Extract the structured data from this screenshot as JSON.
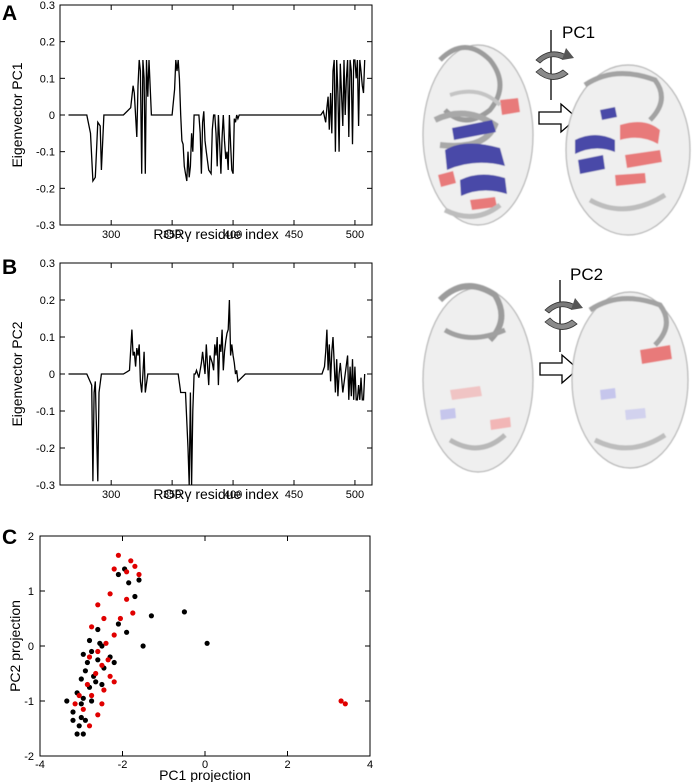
{
  "panels": {
    "a": "A",
    "b": "B",
    "c": "C"
  },
  "structure_labels": {
    "pc1": "PC1",
    "pc2": "PC2"
  },
  "colors": {
    "line": "#000000",
    "black_points": "#000000",
    "red_points": "#e00000",
    "ribbon_base": "#d8d8d8",
    "ribbon_blue": "#4a4aa8",
    "ribbon_red": "#e87a7a"
  },
  "chart_data": [
    {
      "type": "line",
      "panel": "A",
      "xlabel": "RORγ residue index",
      "ylabel": "Eigenvector PC1",
      "xlim": [
        258,
        514
      ],
      "ylim": [
        -0.3,
        0.3
      ],
      "xticks": [
        300,
        350,
        400,
        450,
        500
      ],
      "yticks": [
        -0.3,
        -0.2,
        -0.1,
        0,
        0.1,
        0.2,
        0.3
      ],
      "x": [
        265,
        280,
        283,
        285,
        287,
        289,
        291,
        292,
        294,
        296,
        300,
        310,
        316,
        318,
        319,
        321,
        322,
        323,
        324,
        325,
        326,
        327,
        328,
        329,
        330,
        331,
        333,
        340,
        350,
        352,
        353,
        354,
        355,
        356,
        357,
        358,
        359,
        360,
        361,
        362,
        363,
        364,
        365,
        366,
        367,
        368,
        369,
        370,
        371,
        372,
        373,
        374,
        375,
        376,
        377,
        378,
        380,
        382,
        383,
        384,
        385,
        386,
        387,
        388,
        389,
        390,
        391,
        392,
        393,
        394,
        395,
        396,
        397,
        398,
        399,
        400,
        401,
        402,
        403,
        404,
        405,
        410,
        420,
        440,
        460,
        472,
        474,
        476,
        477,
        478,
        479,
        480,
        481,
        482,
        483,
        484,
        485,
        486,
        487,
        488,
        489,
        490,
        491,
        492,
        493,
        494,
        495,
        496,
        497,
        498,
        499,
        500,
        501,
        502,
        503,
        504,
        505,
        506,
        507,
        508
      ],
      "y": [
        0,
        0,
        -0.05,
        -0.18,
        -0.17,
        -0.02,
        -0.03,
        -0.15,
        0,
        0,
        0,
        0,
        0.02,
        0.08,
        0.06,
        -0.06,
        0.08,
        0.15,
        0.12,
        -0.16,
        0.15,
        0.1,
        -0.16,
        0.15,
        0.05,
        0.15,
        0,
        0,
        0,
        0.07,
        0.15,
        0.12,
        0.15,
        0.1,
        0,
        -0.07,
        -0.08,
        -0.14,
        -0.16,
        -0.18,
        -0.1,
        -0.17,
        -0.14,
        -0.05,
        -0.1,
        0,
        0,
        0,
        0,
        0,
        -0.05,
        -0.16,
        -0.02,
        0.01,
        -0.07,
        -0.1,
        -0.15,
        -0.16,
        -0.04,
        0,
        0,
        -0.05,
        -0.14,
        0,
        -0.08,
        -0.16,
        -0.06,
        0,
        -0.07,
        -0.12,
        -0.1,
        -0.15,
        0,
        -0.08,
        -0.15,
        -0.16,
        -0.01,
        -0.02,
        0,
        -0.01,
        0,
        0,
        0,
        0,
        0,
        0,
        0.01,
        -0.02,
        0.02,
        0.05,
        -0.04,
        0.06,
        -0.05,
        0.12,
        0.15,
        -0.1,
        0.15,
        0.06,
        -0.1,
        0.14,
        0.06,
        -0.03,
        0.15,
        0,
        0.1,
        0.15,
        -0.06,
        0.15,
        0.12,
        -0.08,
        0.15,
        0.15,
        0.1,
        0.15,
        -0.03,
        0.15,
        0.12,
        0.08,
        0.06,
        0.15
      ]
    },
    {
      "type": "line",
      "panel": "B",
      "xlabel": "RORγ residue index",
      "ylabel": "Eigenvector PC2",
      "xlim": [
        258,
        514
      ],
      "ylim": [
        -0.3,
        0.3
      ],
      "xticks": [
        300,
        350,
        400,
        450,
        500
      ],
      "yticks": [
        -0.3,
        -0.2,
        -0.1,
        0,
        0.1,
        0.2,
        0.3
      ],
      "x": [
        265,
        280,
        284,
        285,
        286,
        287,
        289,
        290,
        292,
        294,
        300,
        310,
        315,
        317,
        318,
        319,
        320,
        321,
        322,
        323,
        324,
        325,
        326,
        327,
        328,
        330,
        340,
        355,
        357,
        359,
        361,
        363,
        364,
        365,
        366,
        367,
        368,
        369,
        370,
        372,
        374,
        375,
        377,
        378,
        380,
        381,
        383,
        384,
        385,
        386,
        387,
        388,
        389,
        390,
        391,
        392,
        393,
        394,
        395,
        396,
        397,
        398,
        399,
        400,
        401,
        402,
        403,
        404,
        410,
        430,
        460,
        473,
        475,
        476,
        477,
        478,
        479,
        480,
        481,
        482,
        483,
        484,
        485,
        486,
        487,
        488,
        490,
        492,
        494,
        495,
        496,
        497,
        498,
        499,
        500,
        501,
        502,
        503,
        504,
        505,
        506,
        507,
        508
      ],
      "y": [
        0,
        0,
        -0.03,
        -0.29,
        -0.05,
        -0.02,
        -0.29,
        -0.05,
        0,
        0,
        0,
        0,
        0.01,
        0.12,
        0.05,
        0.06,
        0.02,
        0.07,
        0.05,
        0.08,
        -0.02,
        -0.05,
        0,
        0.06,
        -0.05,
        0,
        0,
        0,
        -0.05,
        -0.05,
        -0.05,
        -0.2,
        -0.3,
        -0.05,
        -0.3,
        -0.1,
        0,
        0,
        0.01,
        -0.01,
        0.03,
        0.06,
        0,
        0.08,
        -0.03,
        0.05,
        0.03,
        0.01,
        0.08,
        0.05,
        0.1,
        -0.03,
        0.08,
        0.06,
        0.12,
        0.01,
        0.06,
        0.09,
        0.11,
        0.12,
        0.2,
        0.05,
        0.08,
        0.05,
        0.03,
        0,
        0.01,
        -0.02,
        0,
        0,
        0,
        0,
        0.02,
        0.06,
        0.12,
        0.01,
        0.08,
        -0.02,
        0.06,
        0.1,
        0.03,
        -0.05,
        0.04,
        -0.06,
        0,
        0.03,
        -0.05,
        0,
        0.05,
        -0.07,
        0.02,
        -0.06,
        0.04,
        -0.07,
        0.02,
        -0.07,
        -0.07,
        -0.03,
        -0.07,
        -0.01,
        -0.07,
        -0.07,
        0
      ]
    },
    {
      "type": "scatter",
      "panel": "C",
      "xlabel": "PC1 projection",
      "ylabel": "PC2 projection",
      "xlim": [
        -4,
        4
      ],
      "ylim": [
        -2,
        2
      ],
      "xticks": [
        -4,
        -2,
        0,
        2,
        4
      ],
      "yticks": [
        -2,
        -1,
        0,
        1,
        2
      ],
      "series": [
        {
          "color": "black",
          "points": [
            [
              -3.1,
              -1.6
            ],
            [
              -2.95,
              -1.6
            ],
            [
              -3.05,
              -1.45
            ],
            [
              -2.9,
              -1.35
            ],
            [
              -3.2,
              -1.2
            ],
            [
              -3.0,
              -1.05
            ],
            [
              -2.95,
              -0.95
            ],
            [
              -3.35,
              -1.0
            ],
            [
              -3.1,
              -0.85
            ],
            [
              -2.8,
              -0.75
            ],
            [
              -3.0,
              -0.6
            ],
            [
              -2.9,
              -0.45
            ],
            [
              -2.7,
              -0.55
            ],
            [
              -2.85,
              -0.3
            ],
            [
              -2.6,
              -0.25
            ],
            [
              -2.75,
              -0.1
            ],
            [
              -2.55,
              0.05
            ],
            [
              -2.8,
              0.1
            ],
            [
              -2.6,
              0.3
            ],
            [
              -2.5,
              0.0
            ],
            [
              -2.45,
              -0.4
            ],
            [
              -2.65,
              -0.65
            ],
            [
              -2.3,
              -0.2
            ],
            [
              -2.1,
              0.4
            ],
            [
              -1.9,
              0.25
            ],
            [
              -1.5,
              0.0
            ],
            [
              -1.3,
              0.55
            ],
            [
              -1.7,
              0.9
            ],
            [
              -1.85,
              1.15
            ],
            [
              -2.1,
              1.3
            ],
            [
              -1.95,
              1.4
            ],
            [
              -1.6,
              1.2
            ],
            [
              -0.5,
              0.62
            ],
            [
              0.05,
              0.05
            ],
            [
              -2.2,
              -0.3
            ],
            [
              -2.95,
              -0.15
            ],
            [
              -3.2,
              -1.35
            ],
            [
              -2.75,
              -1.0
            ],
            [
              -3.0,
              -1.3
            ],
            [
              -2.5,
              -0.7
            ]
          ]
        },
        {
          "color": "red",
          "points": [
            [
              -2.1,
              1.65
            ],
            [
              -1.8,
              1.55
            ],
            [
              -1.7,
              1.45
            ],
            [
              -1.9,
              1.35
            ],
            [
              -2.2,
              1.4
            ],
            [
              -1.6,
              1.3
            ],
            [
              -2.3,
              0.95
            ],
            [
              -1.9,
              0.85
            ],
            [
              -2.6,
              0.75
            ],
            [
              -2.45,
              0.5
            ],
            [
              -1.75,
              0.6
            ],
            [
              -2.2,
              0.2
            ],
            [
              -2.4,
              0.05
            ],
            [
              -2.6,
              -0.1
            ],
            [
              -2.8,
              -0.2
            ],
            [
              -2.5,
              -0.35
            ],
            [
              -2.3,
              -0.55
            ],
            [
              -2.65,
              -0.5
            ],
            [
              -2.85,
              -0.7
            ],
            [
              -2.45,
              -0.8
            ],
            [
              -3.05,
              -0.9
            ],
            [
              -2.75,
              -0.9
            ],
            [
              -2.5,
              -1.05
            ],
            [
              -2.95,
              -1.15
            ],
            [
              -2.6,
              -1.25
            ],
            [
              -2.8,
              -1.45
            ],
            [
              -2.2,
              -0.65
            ],
            [
              -2.05,
              0.5
            ],
            [
              -2.75,
              0.35
            ],
            [
              -2.35,
              -0.25
            ],
            [
              -3.15,
              -1.05
            ],
            [
              3.3,
              -1.0
            ],
            [
              3.4,
              -1.05
            ]
          ]
        }
      ]
    }
  ]
}
